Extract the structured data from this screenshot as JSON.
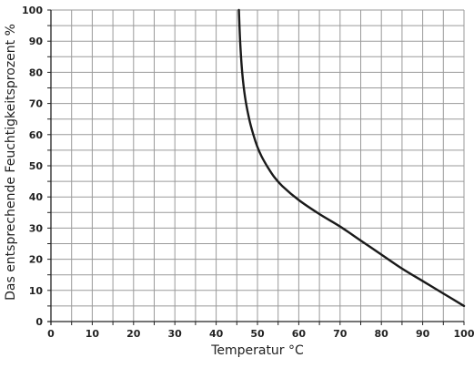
{
  "chart_data": {
    "type": "line",
    "xlabel": "Temperatur °C",
    "ylabel": "Das entsprechende Feuchtigkeitsprozent %",
    "xlim": [
      0,
      100
    ],
    "ylim": [
      0,
      100
    ],
    "x_major_ticks": [
      0,
      10,
      20,
      30,
      40,
      50,
      60,
      70,
      80,
      90,
      100
    ],
    "y_major_ticks": [
      0,
      10,
      20,
      30,
      40,
      50,
      60,
      70,
      80,
      90,
      100
    ],
    "x_minor_step": 5,
    "y_minor_step": 5,
    "grid": true,
    "series": [
      {
        "color": "#1a1a1a",
        "x": [
          45.5,
          45.8,
          46.3,
          47,
          48,
          49,
          50,
          51,
          52.5,
          54,
          56,
          60,
          65,
          70,
          75,
          80,
          85,
          90,
          95,
          100
        ],
        "y": [
          100,
          90,
          80,
          72,
          65,
          60,
          56,
          53,
          49.5,
          46.5,
          43.5,
          39,
          34.5,
          30.5,
          26,
          21.5,
          17,
          13,
          9,
          5
        ]
      }
    ]
  }
}
